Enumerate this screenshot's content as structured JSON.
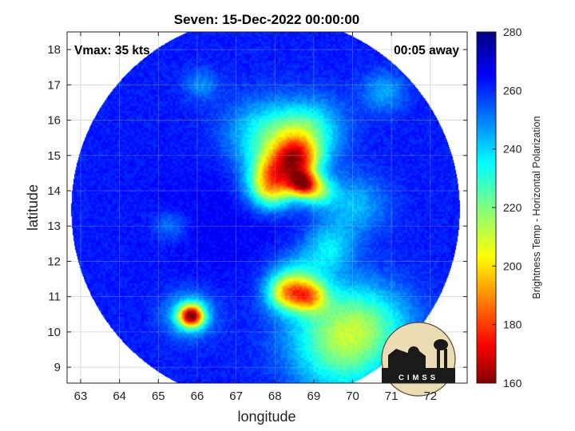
{
  "chart_data": {
    "type": "heatmap",
    "title": "Seven: 15-Dec-2022 00:00:00",
    "xlabel": "longitude",
    "ylabel": "latitude",
    "xlim": [
      62.65,
      72.95
    ],
    "ylim": [
      8.55,
      18.5
    ],
    "x_ticks": [
      63,
      64,
      65,
      66,
      67,
      68,
      69,
      70,
      71,
      72
    ],
    "y_ticks": [
      9,
      10,
      11,
      12,
      13,
      14,
      15,
      16,
      17,
      18
    ],
    "grid": true,
    "annotations": {
      "vmax": "Vmax: 35 kts",
      "time_offset": "00:05 away"
    },
    "swath": {
      "center_lon": 67.75,
      "center_lat": 13.47,
      "radius_deg": 5.0
    },
    "colorbar": {
      "label": "Brightness Temp - Horizontal Polarization",
      "range": [
        160,
        280
      ],
      "ticks": [
        160,
        180,
        200,
        220,
        240,
        260,
        280
      ],
      "colormap": "jet"
    },
    "background_value": 262,
    "features": [
      {
        "kind": "warm-core",
        "lon": 66.8,
        "lat": 13.3,
        "value": 266,
        "spread": 1.4
      },
      {
        "kind": "band",
        "lon": 67.6,
        "lat": 15.6,
        "value": 240,
        "spread": 0.7
      },
      {
        "kind": "band",
        "lon": 68.4,
        "lat": 15.4,
        "value": 236,
        "spread": 0.6
      },
      {
        "kind": "band",
        "lon": 69.0,
        "lat": 15.8,
        "value": 240,
        "spread": 0.6
      },
      {
        "kind": "convection",
        "lon": 68.0,
        "lat": 14.5,
        "value": 215,
        "spread": 0.45
      },
      {
        "kind": "convection",
        "lon": 68.6,
        "lat": 14.9,
        "value": 205,
        "spread": 0.4
      },
      {
        "kind": "convection",
        "lon": 67.9,
        "lat": 14.0,
        "value": 222,
        "spread": 0.4
      },
      {
        "kind": "convection",
        "lon": 68.7,
        "lat": 14.2,
        "value": 195,
        "spread": 0.25
      },
      {
        "kind": "convection",
        "lon": 69.1,
        "lat": 14.0,
        "value": 225,
        "spread": 0.3
      },
      {
        "kind": "band",
        "lon": 69.4,
        "lat": 12.4,
        "value": 240,
        "spread": 0.45
      },
      {
        "kind": "band",
        "lon": 68.6,
        "lat": 11.5,
        "value": 238,
        "spread": 0.5
      },
      {
        "kind": "convection",
        "lon": 68.3,
        "lat": 11.1,
        "value": 215,
        "spread": 0.35
      },
      {
        "kind": "convection",
        "lon": 68.9,
        "lat": 11.0,
        "value": 222,
        "spread": 0.3
      },
      {
        "kind": "band",
        "lon": 69.5,
        "lat": 10.3,
        "value": 238,
        "spread": 0.9
      },
      {
        "kind": "band",
        "lon": 69.7,
        "lat": 9.2,
        "value": 238,
        "spread": 0.9
      },
      {
        "kind": "band",
        "lon": 70.6,
        "lat": 10.2,
        "value": 240,
        "spread": 0.8
      },
      {
        "kind": "convection",
        "lon": 65.85,
        "lat": 10.45,
        "value": 180,
        "spread": 0.22
      },
      {
        "kind": "band",
        "lon": 65.8,
        "lat": 10.5,
        "value": 236,
        "spread": 0.45
      },
      {
        "kind": "band",
        "lon": 70.0,
        "lat": 13.6,
        "value": 242,
        "spread": 0.6
      },
      {
        "kind": "band",
        "lon": 70.8,
        "lat": 16.8,
        "value": 245,
        "spread": 0.4
      },
      {
        "kind": "band",
        "lon": 66.1,
        "lat": 17.0,
        "value": 248,
        "spread": 0.3
      },
      {
        "kind": "band",
        "lon": 65.3,
        "lat": 13.0,
        "value": 250,
        "spread": 0.3
      }
    ]
  }
}
